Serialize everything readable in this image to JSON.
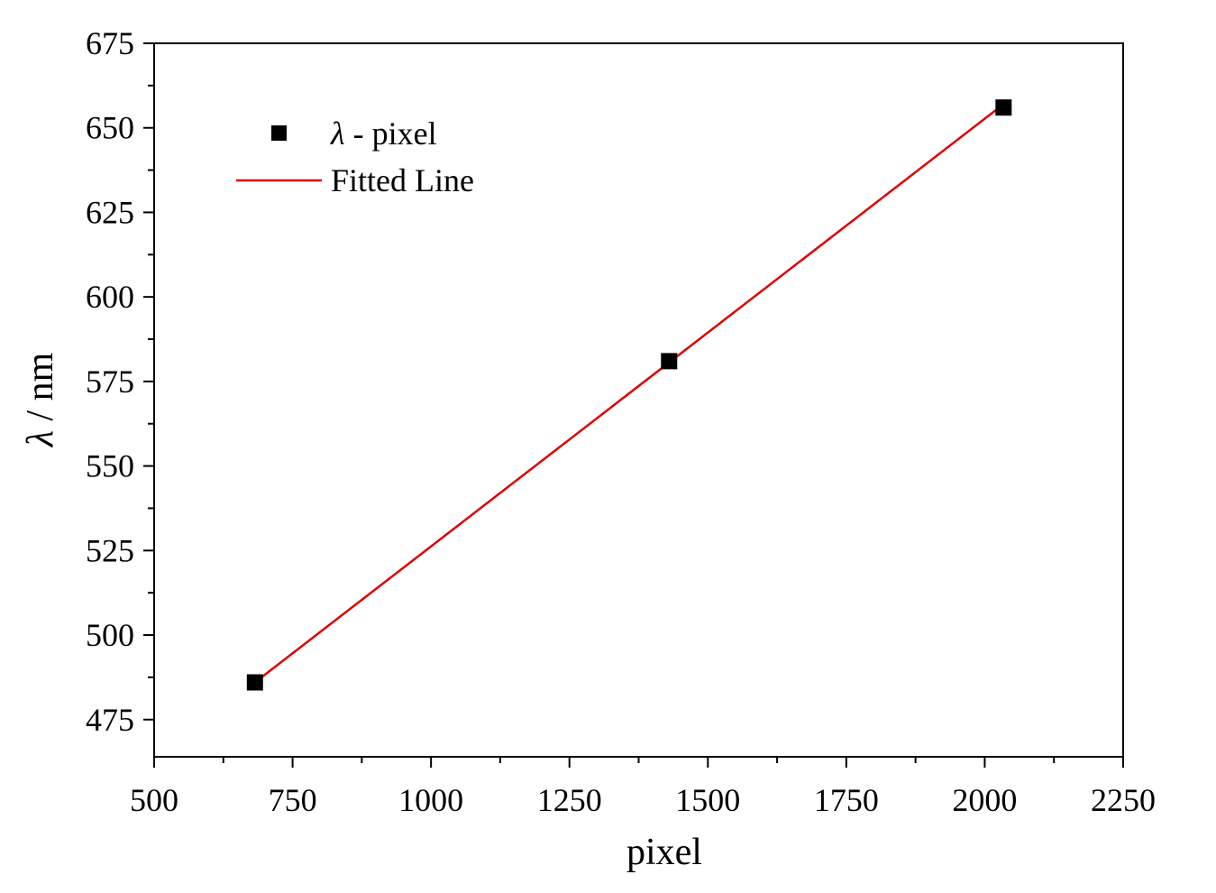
{
  "chart_data": {
    "type": "scatter",
    "xlabel": "pixel",
    "ylabel_symbol": "λ",
    "ylabel_unit": " / nm",
    "xlim": [
      500,
      2250
    ],
    "ylim": [
      464,
      675
    ],
    "xticks": [
      500,
      750,
      1000,
      1250,
      1500,
      1750,
      2000,
      2250
    ],
    "yticks": [
      475,
      500,
      525,
      550,
      575,
      600,
      625,
      650,
      675
    ],
    "grid": false,
    "legend_position": "top-left",
    "series": [
      {
        "name_symbol": "λ",
        "name_text": " - pixel",
        "kind": "scatter",
        "marker": "square",
        "color": "#000000",
        "x": [
          682,
          1430,
          2034
        ],
        "y": [
          486,
          581,
          656
        ]
      },
      {
        "name": "Fitted Line",
        "kind": "line",
        "color": "#e00000",
        "x": [
          682,
          2034
        ],
        "y": [
          486,
          657
        ]
      }
    ]
  }
}
